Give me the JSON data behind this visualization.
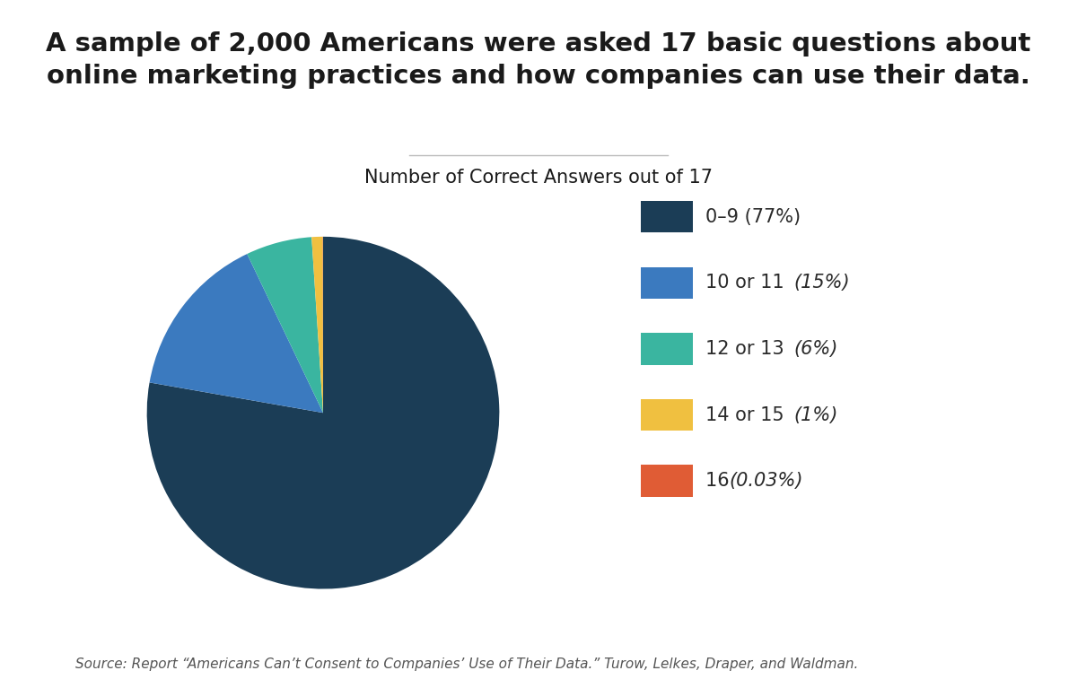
{
  "title": "A sample of 2,000 Americans were asked 17 basic questions about\nonline marketing practices and how companies can use their data.",
  "subtitle": "Number of Correct Answers out of 17",
  "source": "Source: Report “Americans Can’t Consent to Companies’ Use of Their Data.” Turow, Lelkes, Draper, and Waldman.",
  "slices": [
    77,
    15,
    6,
    1,
    0.03
  ],
  "colors": [
    "#1b3d56",
    "#3b7abf",
    "#3ab5a0",
    "#f0c040",
    "#e05c35"
  ],
  "labels": [
    "0–9",
    "10 or 11",
    "12 or 13",
    "14 or 15",
    "16"
  ],
  "pct_labels": [
    "77%",
    "15%",
    "6%",
    "1%",
    "0.03%"
  ],
  "background_color": "#ffffff",
  "title_fontsize": 21,
  "subtitle_fontsize": 15,
  "source_fontsize": 11,
  "legend_fontsize": 15
}
